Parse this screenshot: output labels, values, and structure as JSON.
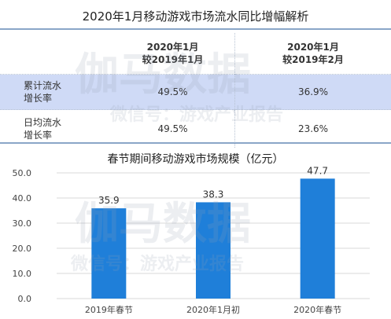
{
  "table": {
    "title": "2020年1月移动游戏市场流水同比增幅解析",
    "col1_line1": "2020年1月",
    "col1_line2": "较2019年1月",
    "col2_line1": "2020年1月",
    "col2_line2": "较2019年2月",
    "rows": [
      {
        "label_line1": "累计流水",
        "label_line2": "增长率",
        "v1": "49.5%",
        "v2": "36.9%"
      },
      {
        "label_line1": "日均流水",
        "label_line2": "增长率",
        "v1": "49.5%",
        "v2": "23.6%"
      }
    ]
  },
  "watermark": {
    "brand": "伽马数据",
    "wechat": "微信号：游戏产业报告"
  },
  "chart_data": {
    "type": "bar",
    "title": "春节期间移动游戏市场规模（亿元）",
    "categories": [
      "2019年春节",
      "2020年1月初",
      "2020年春节"
    ],
    "values": [
      35.9,
      38.3,
      47.7
    ],
    "value_labels": [
      "35.9",
      "38.3",
      "47.7"
    ],
    "ylim": [
      0,
      50
    ],
    "yticks": [
      "0.0",
      "10.0",
      "20.0",
      "30.0",
      "40.0",
      "50.0"
    ],
    "ytick_values": [
      0,
      10,
      20,
      30,
      40,
      50
    ],
    "bar_color": "#1f7fd9",
    "grid": true
  }
}
